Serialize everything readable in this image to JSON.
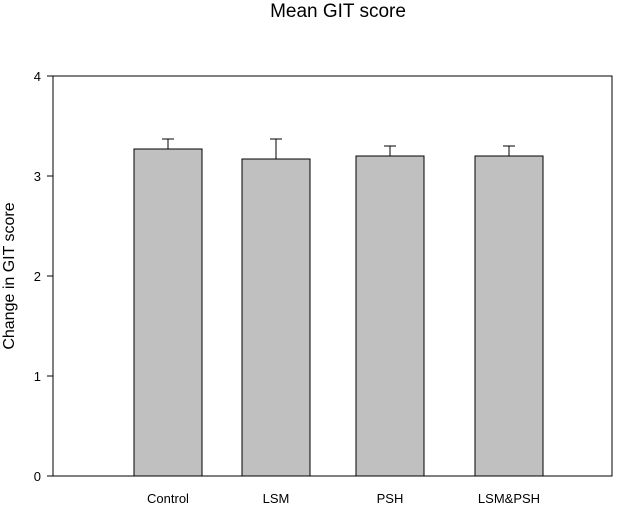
{
  "chart_data": {
    "type": "bar",
    "title": "Mean GIT score",
    "xlabel": "",
    "ylabel": "Change in GIT score",
    "categories": [
      "Control",
      "LSM",
      "PSH",
      "LSM&PSH"
    ],
    "values": [
      3.27,
      3.17,
      3.2,
      3.2
    ],
    "error_upper": [
      0.1,
      0.2,
      0.1,
      0.1
    ],
    "ylim": [
      0,
      4
    ],
    "yticks": [
      "0",
      "1",
      "2",
      "3",
      "4"
    ],
    "grid": false,
    "legend": "none",
    "colors": {
      "bar_fill": "#c0c0c0",
      "bar_stroke": "#000000",
      "axis": "#000000",
      "background": "#ffffff"
    }
  }
}
